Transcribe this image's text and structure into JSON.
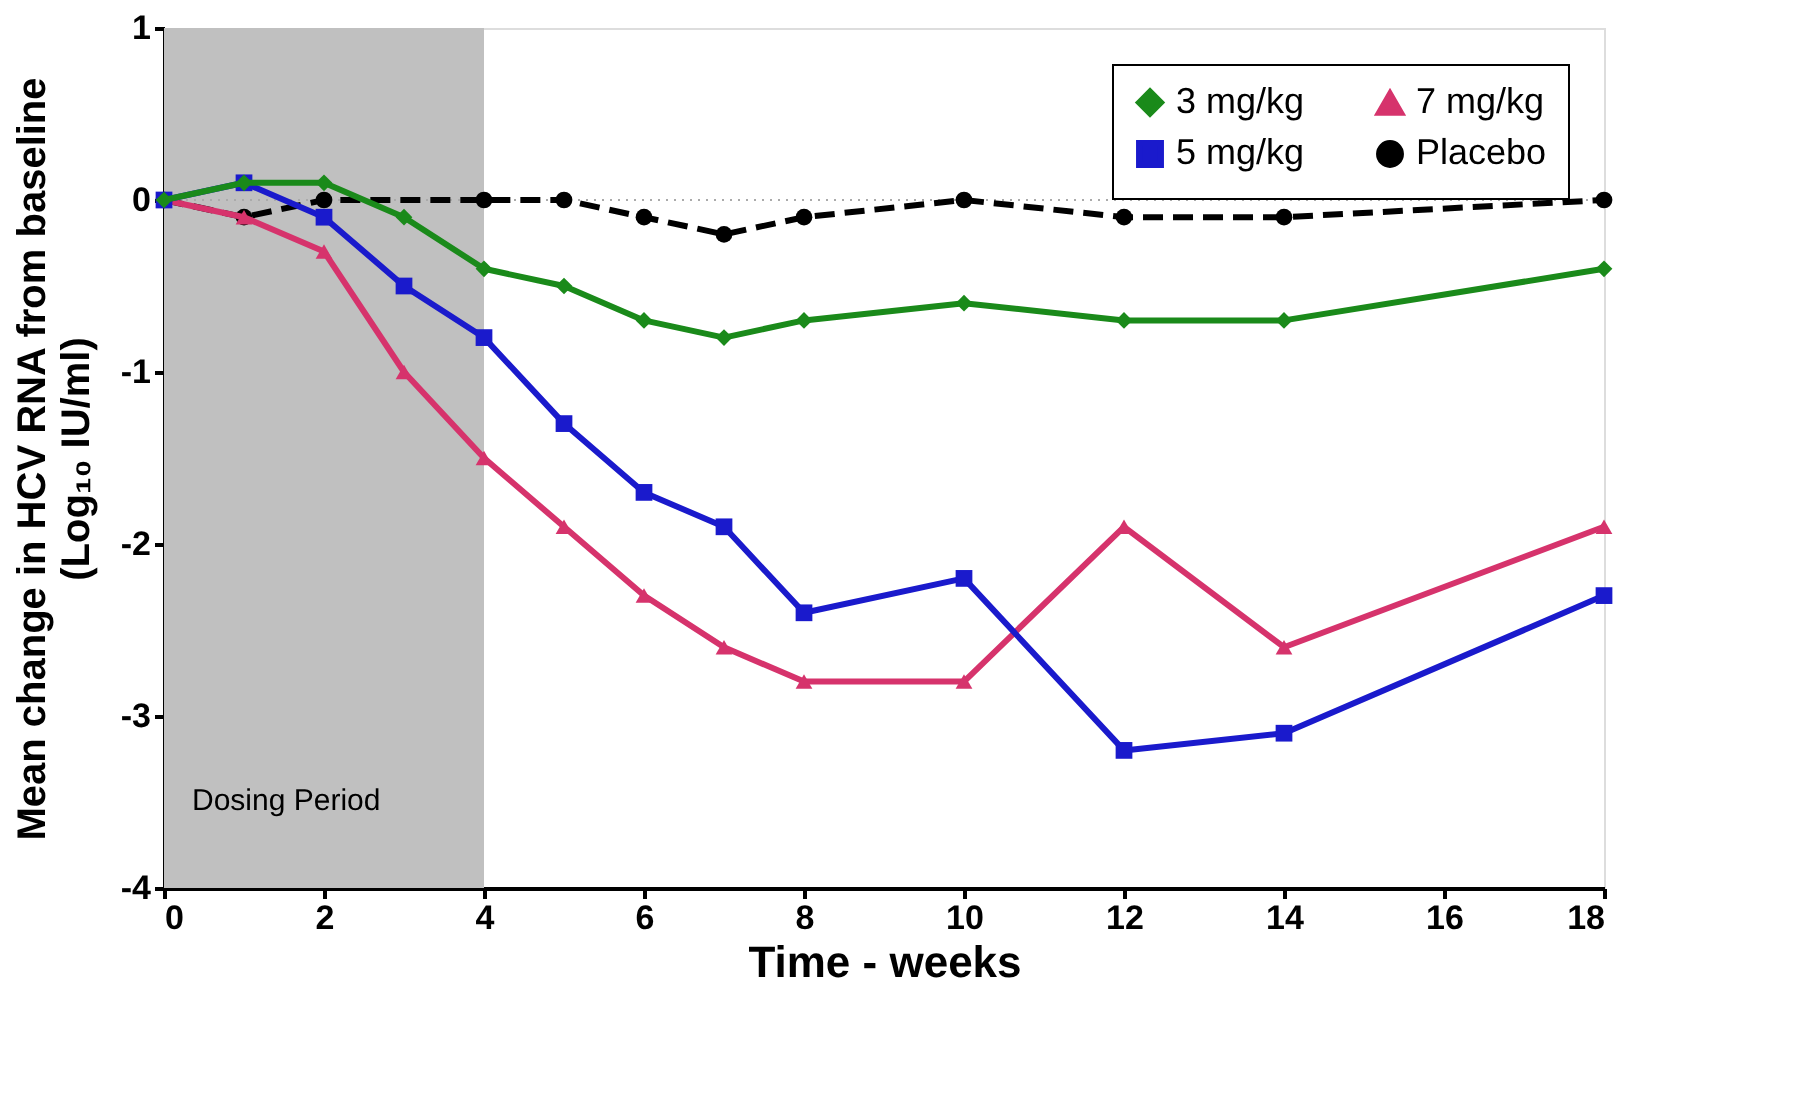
{
  "chart_data": {
    "type": "line",
    "xlabel": "Time - weeks",
    "ylabel": "Mean change in HCV RNA from baseline (Log₁₀ IU/ml)",
    "xlim": [
      0,
      18
    ],
    "xticks": [
      0,
      2,
      4,
      6,
      8,
      10,
      12,
      14,
      16,
      18
    ],
    "ylim": [
      -4,
      1
    ],
    "yticks": [
      -4,
      -3,
      -2,
      -1,
      0,
      1
    ],
    "grid": false,
    "legend": "top right",
    "series": [
      {
        "name": "3 mg/kg",
        "color": "#1a8a1a",
        "marker": "diamond",
        "line_style": "solid",
        "x": [
          0,
          1,
          2,
          3,
          4,
          5,
          6,
          7,
          8,
          10,
          12,
          14,
          18
        ],
        "values": [
          0,
          0.1,
          0.1,
          -0.1,
          -0.4,
          -0.5,
          -0.7,
          -0.8,
          -0.7,
          -0.6,
          -0.7,
          -0.7,
          -0.4
        ]
      },
      {
        "name": "5 mg/kg",
        "color": "#1a1acc",
        "marker": "square",
        "line_style": "solid",
        "x": [
          0,
          1,
          2,
          3,
          4,
          5,
          6,
          7,
          8,
          10,
          12,
          14,
          18
        ],
        "values": [
          0,
          0.1,
          -0.1,
          -0.5,
          -0.8,
          -1.3,
          -1.7,
          -1.9,
          -2.4,
          -2.2,
          -3.2,
          -3.1,
          -2.3
        ]
      },
      {
        "name": "7 mg/kg",
        "color": "#d6336c",
        "marker": "triangle",
        "line_style": "solid",
        "x": [
          0,
          1,
          2,
          3,
          4,
          5,
          6,
          7,
          8,
          10,
          12,
          14,
          18
        ],
        "values": [
          0,
          -0.1,
          -0.3,
          -1.0,
          -1.5,
          -1.9,
          -2.3,
          -2.6,
          -2.8,
          -2.8,
          -1.9,
          -2.6,
          -1.9
        ]
      },
      {
        "name": "Placebo",
        "color": "#000000",
        "marker": "circle",
        "line_style": "dashed",
        "x": [
          0,
          1,
          2,
          4,
          5,
          6,
          7,
          8,
          10,
          12,
          14,
          18
        ],
        "values": [
          0,
          -0.1,
          0,
          0,
          0,
          -0.1,
          -0.2,
          -0.1,
          0,
          -0.1,
          -0.1,
          0
        ]
      }
    ],
    "ref_lines": [
      {
        "axis": "y",
        "value": 0,
        "color": "#aaaaaa",
        "line_style": "dotted"
      }
    ],
    "bands": [
      {
        "axis": "x",
        "from": 0,
        "to": 4,
        "label": "Dosing Period",
        "color": "#c0c0c0"
      }
    ]
  }
}
